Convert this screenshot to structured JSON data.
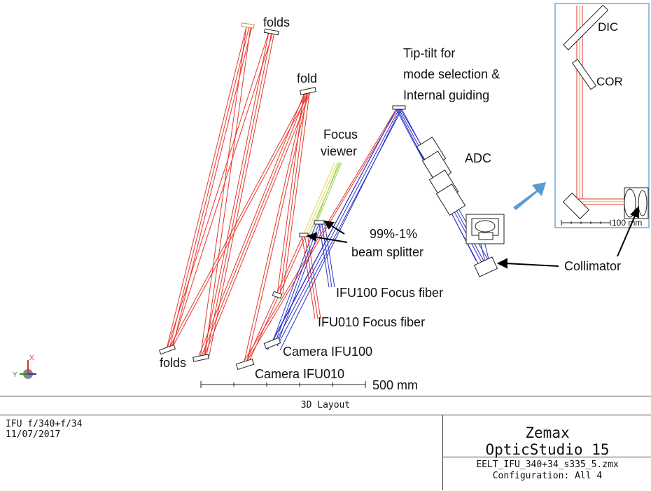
{
  "colors": {
    "red_beam": "#e8352a",
    "blue_beam": "#2a32c8",
    "green_beam": "#9dcf4a",
    "yellow_beam": "#e6d45a",
    "arrow_blue": "#5b9bd5",
    "inset_border": "#6fa8d8"
  },
  "labels": {
    "folds_top": "folds",
    "fold": "fold",
    "tip_tilt_1": "Tip-tilt for",
    "tip_tilt_2": "mode selection &",
    "tip_tilt_3": "Internal guiding",
    "focus_viewer_1": "Focus",
    "focus_viewer_2": "viewer",
    "adc": "ADC",
    "splitter_1": "99%-1%",
    "splitter_2": "beam splitter",
    "collimator": "Collimator",
    "ifu100_fiber": "IFU100 Focus fiber",
    "ifu010_fiber": "IFU010 Focus fiber",
    "camera_ifu100": "Camera IFU100",
    "camera_ifu010": "Camera IFU010",
    "folds_bottom": "folds",
    "scale_main": "500 mm"
  },
  "inset": {
    "dic": "DIC",
    "cor": "COR",
    "scale": "100 mm"
  },
  "axes": {
    "x": "X",
    "y": "Y"
  },
  "footer": {
    "title": "3D Layout",
    "left_line1": "IFU f/340+f/34",
    "left_line2": "11/07/2017",
    "brand_line1": "Zemax",
    "brand_line2": "OpticStudio 15",
    "file": "EELT_IFU_340+34_s335_5.zmx",
    "config": "Configuration: All 4"
  }
}
